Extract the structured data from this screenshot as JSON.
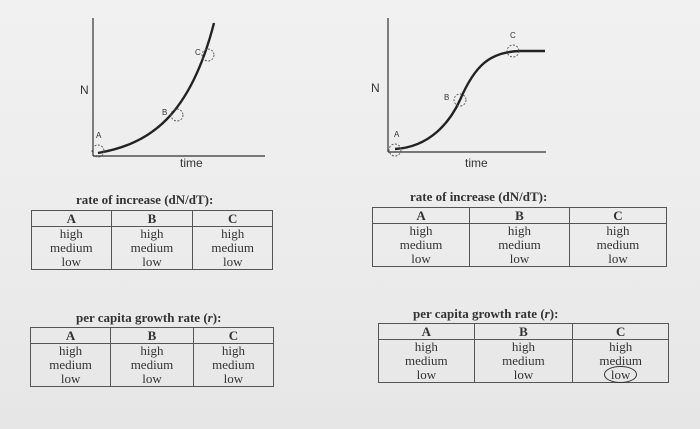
{
  "graphs": [
    {
      "type": "exponential",
      "y_axis_label": "N",
      "x_axis_label": "time",
      "points": [
        "A",
        "B",
        "C"
      ]
    },
    {
      "type": "logistic",
      "y_axis_label": "N",
      "x_axis_label": "time",
      "points": [
        "A",
        "B",
        "C"
      ]
    }
  ],
  "tables": [
    {
      "title": "rate of increase (dN/dT):",
      "headers": [
        "A",
        "B",
        "C"
      ],
      "columns": [
        [
          "high",
          "medium",
          "low"
        ],
        [
          "high",
          "medium",
          "low"
        ],
        [
          "high",
          "medium",
          "low"
        ]
      ]
    },
    {
      "title": "rate of increase (dN/dT):",
      "headers": [
        "A",
        "B",
        "C"
      ],
      "columns": [
        [
          "high",
          "medium",
          "low"
        ],
        [
          "high",
          "medium",
          "low"
        ],
        [
          "high",
          "medium",
          "low"
        ]
      ]
    },
    {
      "title_prefix": "per capita growth rate (",
      "title_var": "r",
      "title_suffix": "):",
      "headers": [
        "A",
        "B",
        "C"
      ],
      "columns": [
        [
          "high",
          "medium",
          "low"
        ],
        [
          "high",
          "medium",
          "low"
        ],
        [
          "high",
          "medium",
          "low"
        ]
      ]
    },
    {
      "title_prefix": "per capita growth rate (",
      "title_var": "r",
      "title_suffix": "):",
      "headers": [
        "A",
        "B",
        "C"
      ],
      "columns": [
        [
          "high",
          "medium",
          "low"
        ],
        [
          "high",
          "medium",
          "low"
        ],
        [
          "high",
          "medium",
          "low"
        ]
      ],
      "circled_answer": "low"
    }
  ]
}
